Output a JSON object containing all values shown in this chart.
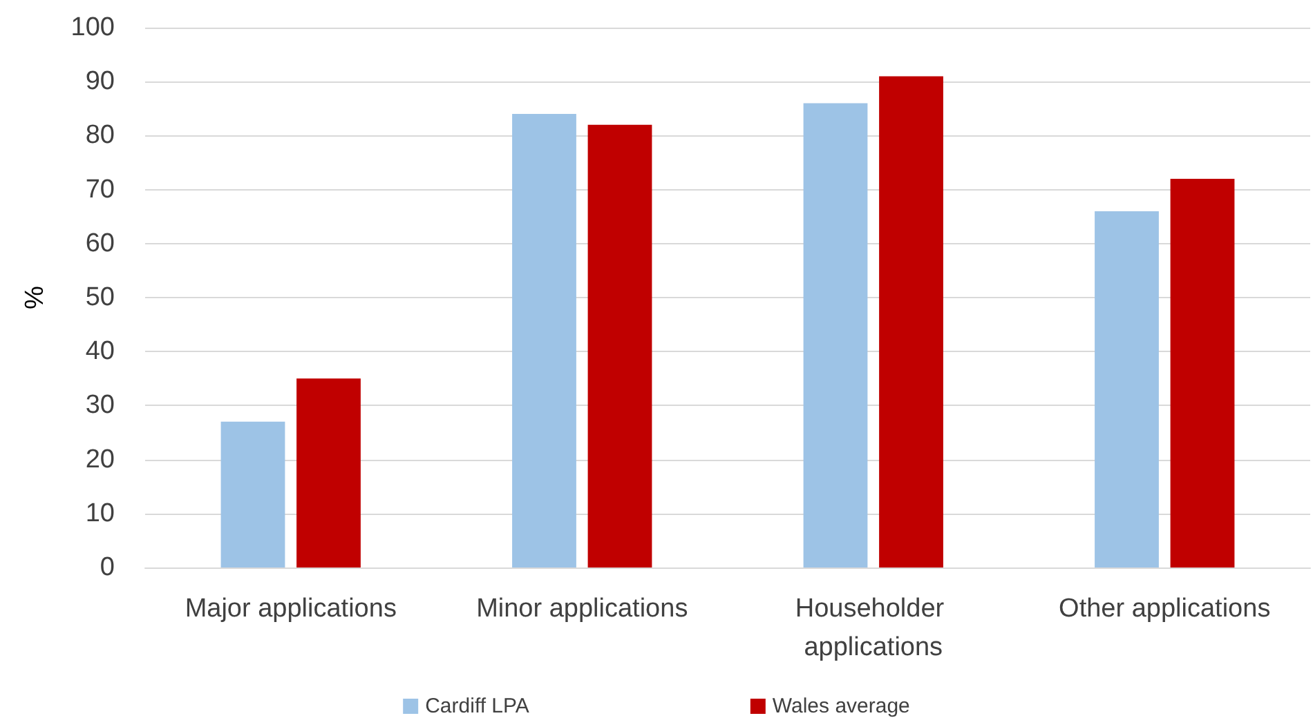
{
  "chart_data": {
    "type": "bar",
    "ylabel": "%",
    "categories": [
      "Major applications",
      "Minor applications",
      "Householder applications",
      "Other applications"
    ],
    "series": [
      {
        "name": "Cardiff LPA",
        "color": "#9dc3e6",
        "values": [
          27,
          84,
          86,
          66
        ]
      },
      {
        "name": "Wales average",
        "color": "#c00000",
        "values": [
          35,
          82,
          91,
          72
        ]
      }
    ],
    "ylim": [
      0,
      100
    ],
    "yticks": [
      0,
      10,
      20,
      30,
      40,
      50,
      60,
      70,
      80,
      90,
      100
    ],
    "grid": "y",
    "legend": "bottom"
  }
}
